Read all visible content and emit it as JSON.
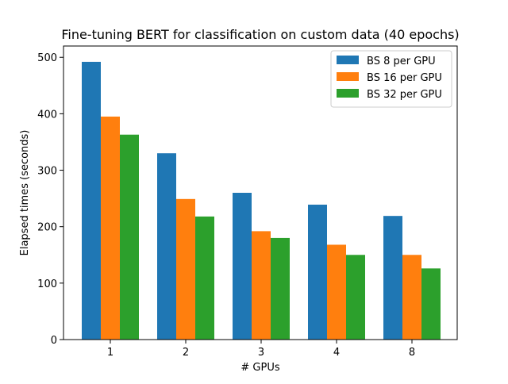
{
  "chart_data": {
    "type": "bar",
    "title": "Fine-tuning BERT for classification on custom data (40 epochs)",
    "xlabel": "# GPUs",
    "ylabel": "Elapsed times (seconds)",
    "categories": [
      "1",
      "2",
      "3",
      "4",
      "8"
    ],
    "ylim": [
      0,
      520
    ],
    "yticks": [
      0,
      100,
      200,
      300,
      400,
      500
    ],
    "grid": false,
    "legend_position": "top-right",
    "series": [
      {
        "name": "BS 8 per GPU",
        "color": "#1f77b4",
        "values": [
          492,
          330,
          260,
          239,
          219
        ]
      },
      {
        "name": "BS 16 per GPU",
        "color": "#ff7f0e",
        "values": [
          395,
          249,
          192,
          168,
          150
        ]
      },
      {
        "name": "BS 32 per GPU",
        "color": "#2ca02c",
        "values": [
          363,
          218,
          180,
          150,
          126
        ]
      }
    ]
  }
}
